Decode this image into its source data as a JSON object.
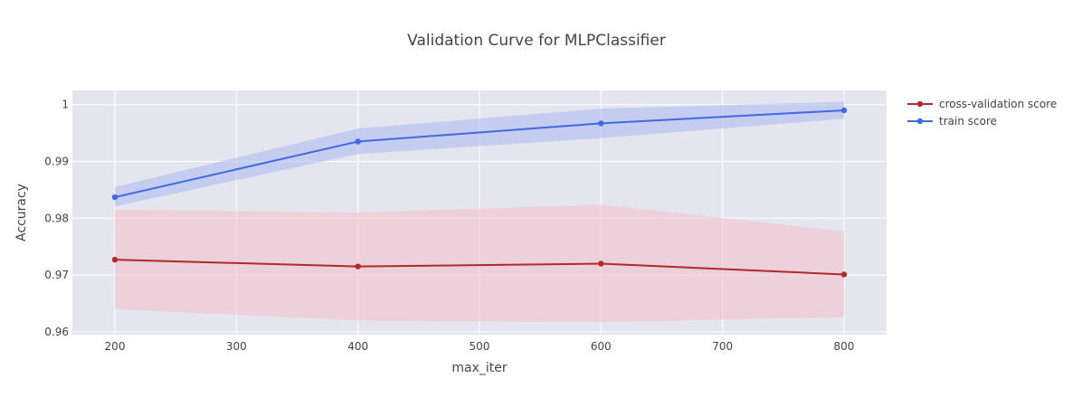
{
  "chart_data": {
    "type": "line",
    "title": "Validation Curve for MLPClassifier",
    "xlabel": "max_iter",
    "ylabel": "Accuracy",
    "x": [
      200,
      400,
      600,
      800
    ],
    "xlim": [
      165,
      835
    ],
    "ylim": [
      0.9595,
      1.0025
    ],
    "xticks": [
      200,
      300,
      400,
      500,
      600,
      700,
      800
    ],
    "yticks": [
      0.96,
      0.97,
      0.98,
      0.99,
      1
    ],
    "ytick_labels": [
      "0.96",
      "0.97",
      "0.98",
      "0.99",
      "1"
    ],
    "grid": true,
    "legend_position": "top-right",
    "series": [
      {
        "name": "cross-validation score",
        "color": "#b22a2a",
        "band_color": "#f2c0c8",
        "values": [
          0.9727,
          0.9715,
          0.972,
          0.9701
        ],
        "upper": [
          0.9815,
          0.981,
          0.9824,
          0.9777
        ],
        "lower": [
          0.964,
          0.962,
          0.9617,
          0.9626
        ]
      },
      {
        "name": "train score",
        "color": "#4169e1",
        "band_color": "#a9b9ef",
        "values": [
          0.9837,
          0.9935,
          0.9967,
          0.999
        ],
        "upper": [
          0.9855,
          0.9958,
          0.9993,
          1.0005
        ],
        "lower": [
          0.9821,
          0.9913,
          0.9941,
          0.9975
        ]
      }
    ]
  }
}
